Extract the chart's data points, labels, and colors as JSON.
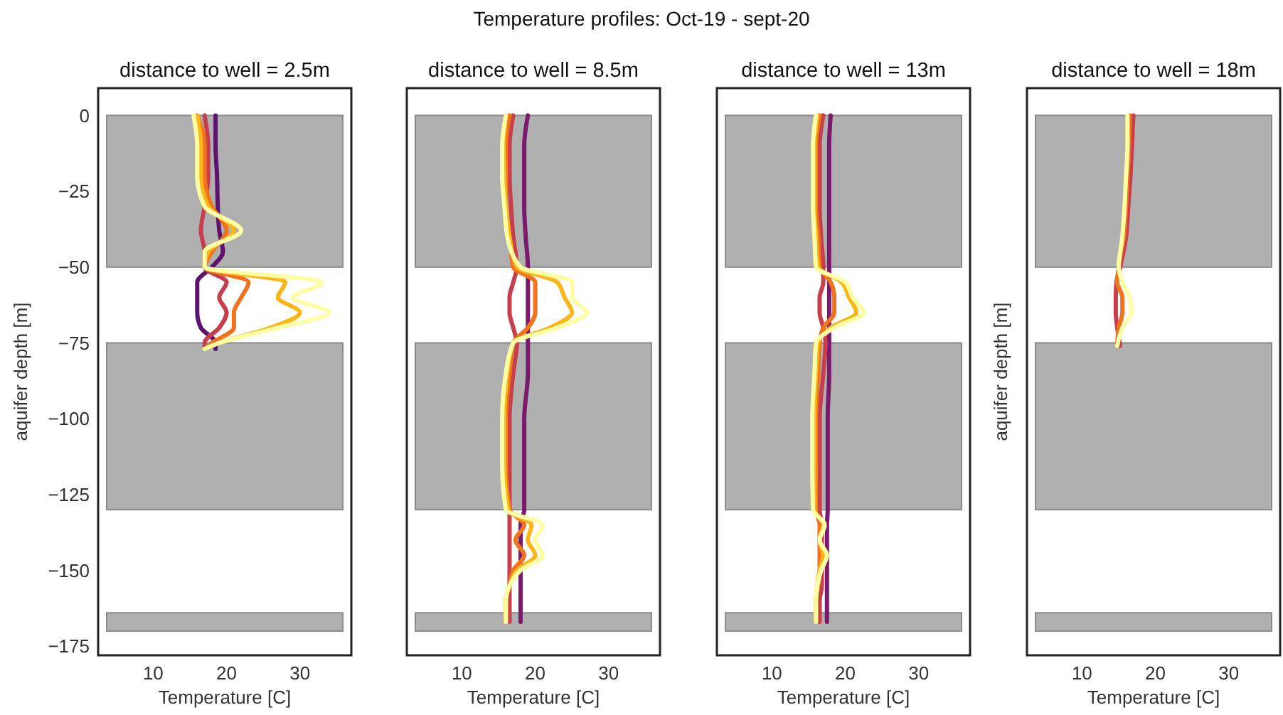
{
  "chart_data": [
    {
      "type": "line",
      "title": "distance to well = 2.5m",
      "xlabel": "Temperature [C]",
      "ylabel": "aquifer depth [m]",
      "annotations": [
        "Temperature profiles: Oct-19 - sept-20"
      ],
      "xlim": [
        2.5,
        37
      ],
      "xticks": [
        10,
        20,
        30
      ],
      "ylim": [
        -178,
        9
      ],
      "yticks": [
        0,
        -25,
        -50,
        -75,
        -100,
        -125,
        -150,
        -175
      ],
      "grid": false,
      "bands": [
        {
          "axis": "y",
          "from": -50,
          "to": 0,
          "color": "#b0b0b0"
        },
        {
          "axis": "y",
          "from": -130,
          "to": -75,
          "color": "#b0b0b0"
        },
        {
          "axis": "y",
          "from": -170,
          "to": -164,
          "color": "#b0b0b0"
        }
      ],
      "series": [
        {
          "color": "#5d126e",
          "x": [
            18.5,
            18.5,
            18.7,
            18.8,
            19,
            19.5,
            18,
            16,
            16,
            16,
            16.5,
            18.5,
            18.5
          ],
          "values": [
            0,
            -10,
            -20,
            -30,
            -38,
            -45,
            -50,
            -55,
            -60,
            -65,
            -70,
            -75,
            -77
          ]
        },
        {
          "color": "#c73e4c",
          "x": [
            17,
            17.5,
            17.5,
            17,
            16.5,
            17,
            17,
            20,
            19,
            20,
            19,
            17,
            17
          ],
          "values": [
            0,
            -10,
            -20,
            -30,
            -38,
            -45,
            -50,
            -55,
            -60,
            -65,
            -70,
            -75,
            -77
          ]
        },
        {
          "color": "#f0731f",
          "x": [
            16,
            17,
            17,
            18,
            20,
            18,
            17,
            23,
            22,
            21,
            21,
            18,
            17
          ],
          "values": [
            0,
            -10,
            -20,
            -30,
            -38,
            -45,
            -50,
            -55,
            -60,
            -65,
            -70,
            -75,
            -77
          ]
        },
        {
          "color": "#fbb61a",
          "x": [
            16,
            16.5,
            16.5,
            17.5,
            21,
            17.5,
            17,
            28,
            27,
            30,
            26,
            19,
            17
          ],
          "values": [
            0,
            -10,
            -20,
            -30,
            -38,
            -45,
            -50,
            -55,
            -60,
            -65,
            -70,
            -75,
            -77
          ]
        },
        {
          "color": "#fcffa4",
          "x": [
            15.5,
            16,
            16,
            17,
            22,
            17,
            17,
            33,
            29,
            34,
            27,
            19,
            17
          ],
          "values": [
            0,
            -10,
            -20,
            -30,
            -38,
            -45,
            -50,
            -55,
            -60,
            -65,
            -70,
            -75,
            -77
          ]
        }
      ]
    },
    {
      "type": "line",
      "title": "distance to well = 8.5m",
      "xlabel": "Temperature [C]",
      "tick_labels": "x",
      "xlim": [
        2.5,
        37
      ],
      "xticks": [
        10,
        20,
        30
      ],
      "ylim": [
        -178,
        9
      ],
      "grid": false,
      "bands": [
        {
          "axis": "y",
          "from": -50,
          "to": 0,
          "color": "#b0b0b0"
        },
        {
          "axis": "y",
          "from": -130,
          "to": -75,
          "color": "#b0b0b0"
        },
        {
          "axis": "y",
          "from": -170,
          "to": -164,
          "color": "#b0b0b0"
        }
      ],
      "series": [
        {
          "color": "#7a1a6d",
          "x": [
            19,
            18.5,
            18.5,
            18.5,
            18.7,
            19,
            19,
            19,
            19,
            19,
            19,
            19,
            18.5,
            18.5,
            18.5,
            18,
            18,
            18,
            18,
            18,
            18,
            18
          ],
          "values": [
            0,
            -10,
            -20,
            -30,
            -40,
            -50,
            -55,
            -60,
            -65,
            -70,
            -75,
            -85,
            -100,
            -115,
            -130,
            -135,
            -140,
            -145,
            -150,
            -155,
            -160,
            -167
          ]
        },
        {
          "color": "#c73e4c",
          "x": [
            17,
            16.5,
            16.5,
            16.7,
            17,
            17.5,
            17,
            16.5,
            16.5,
            17,
            17.5,
            17,
            16.5,
            16.5,
            16.5,
            16.5,
            16.5,
            16.5,
            16.5,
            16.5,
            16.5,
            16.5
          ],
          "values": [
            0,
            -10,
            -20,
            -30,
            -40,
            -50,
            -55,
            -60,
            -65,
            -70,
            -75,
            -85,
            -100,
            -115,
            -130,
            -135,
            -140,
            -145,
            -150,
            -155,
            -160,
            -167
          ]
        },
        {
          "color": "#f0731f",
          "x": [
            16.5,
            16,
            16,
            16,
            16.5,
            17,
            20,
            20,
            20,
            19,
            17,
            16.5,
            16,
            16,
            16.5,
            18.5,
            17.3,
            18.5,
            17,
            16.5,
            16,
            16
          ],
          "values": [
            0,
            -10,
            -20,
            -30,
            -40,
            -50,
            -55,
            -60,
            -65,
            -70,
            -75,
            -85,
            -100,
            -115,
            -130,
            -135,
            -140,
            -145,
            -150,
            -155,
            -160,
            -167
          ]
        },
        {
          "color": "#fbb61a",
          "x": [
            16,
            15.7,
            15.8,
            16,
            16.5,
            17.5,
            23,
            24,
            25,
            22,
            17,
            16.2,
            15.8,
            15.8,
            16.3,
            19.5,
            19,
            20,
            17.5,
            16.5,
            16,
            16
          ],
          "values": [
            0,
            -10,
            -20,
            -30,
            -40,
            -50,
            -55,
            -60,
            -65,
            -70,
            -75,
            -85,
            -100,
            -115,
            -130,
            -135,
            -140,
            -145,
            -150,
            -155,
            -160,
            -167
          ]
        },
        {
          "color": "#fcffa4",
          "x": [
            16,
            15.5,
            15.5,
            15.8,
            16.2,
            18,
            25,
            25,
            27,
            23,
            17,
            16,
            15.5,
            15.5,
            16,
            21,
            20,
            21,
            18,
            16.5,
            16,
            16
          ],
          "values": [
            0,
            -10,
            -20,
            -30,
            -40,
            -50,
            -55,
            -60,
            -65,
            -70,
            -75,
            -85,
            -100,
            -115,
            -130,
            -135,
            -140,
            -145,
            -150,
            -155,
            -160,
            -167
          ]
        }
      ]
    },
    {
      "type": "line",
      "title": "distance to well = 13m",
      "xlabel": "Temperature [C]",
      "tick_labels": "x",
      "xlim": [
        2.5,
        37
      ],
      "xticks": [
        10,
        20,
        30
      ],
      "ylim": [
        -178,
        9
      ],
      "grid": false,
      "bands": [
        {
          "axis": "y",
          "from": -50,
          "to": 0,
          "color": "#b0b0b0"
        },
        {
          "axis": "y",
          "from": -130,
          "to": -75,
          "color": "#b0b0b0"
        },
        {
          "axis": "y",
          "from": -170,
          "to": -164,
          "color": "#b0b0b0"
        }
      ],
      "series": [
        {
          "color": "#7a1a6d",
          "x": [
            18,
            17.8,
            17.8,
            17.8,
            17.8,
            17.8,
            17.8,
            17.8,
            17.8,
            17.8,
            17.8,
            17.8,
            17.6,
            17.6,
            17.6,
            17.5,
            17.5,
            17.5,
            17.5,
            17.5,
            17.5,
            17.5
          ],
          "values": [
            0,
            -10,
            -20,
            -30,
            -40,
            -50,
            -55,
            -60,
            -65,
            -70,
            -75,
            -85,
            -100,
            -115,
            -130,
            -135,
            -140,
            -145,
            -150,
            -155,
            -160,
            -167
          ]
        },
        {
          "color": "#c73e4c",
          "x": [
            17,
            16.5,
            16.5,
            16.5,
            16.7,
            17,
            17,
            16.5,
            16.5,
            17,
            17.3,
            17,
            16.5,
            16.5,
            16.5,
            16.8,
            16.8,
            16.8,
            16.8,
            16.8,
            16.5,
            16.5
          ],
          "values": [
            0,
            -10,
            -20,
            -30,
            -40,
            -50,
            -55,
            -60,
            -65,
            -70,
            -75,
            -85,
            -100,
            -115,
            -130,
            -135,
            -140,
            -145,
            -150,
            -155,
            -160,
            -167
          ]
        },
        {
          "color": "#f0731f",
          "x": [
            16.5,
            16,
            16,
            16,
            16.3,
            16.5,
            18,
            18.5,
            18.5,
            17,
            16.5,
            16.3,
            16,
            16,
            16,
            16.5,
            16.5,
            16.5,
            16.5,
            16.3,
            16,
            16
          ],
          "values": [
            0,
            -10,
            -20,
            -30,
            -40,
            -50,
            -55,
            -60,
            -65,
            -70,
            -75,
            -85,
            -100,
            -115,
            -130,
            -135,
            -140,
            -145,
            -150,
            -155,
            -160,
            -167
          ]
        },
        {
          "color": "#fbb61a",
          "x": [
            16.2,
            15.8,
            15.8,
            15.8,
            16,
            16.3,
            19.5,
            20.5,
            21.5,
            18,
            16.3,
            16,
            15.8,
            15.8,
            15.8,
            17,
            16.5,
            17,
            16.5,
            16.2,
            16,
            16
          ],
          "values": [
            0,
            -10,
            -20,
            -30,
            -40,
            -50,
            -55,
            -60,
            -65,
            -70,
            -75,
            -85,
            -100,
            -115,
            -130,
            -135,
            -140,
            -145,
            -150,
            -155,
            -160,
            -167
          ]
        },
        {
          "color": "#fcffa4",
          "x": [
            16,
            15.6,
            15.6,
            15.6,
            15.8,
            16,
            20,
            21,
            22.5,
            18.5,
            16,
            15.8,
            15.5,
            15.5,
            15.6,
            17.2,
            16.5,
            17.5,
            16.7,
            16.2,
            16,
            16
          ],
          "values": [
            0,
            -10,
            -20,
            -30,
            -40,
            -50,
            -55,
            -60,
            -65,
            -70,
            -75,
            -85,
            -100,
            -115,
            -130,
            -135,
            -140,
            -145,
            -150,
            -155,
            -160,
            -167
          ]
        }
      ]
    },
    {
      "type": "line",
      "title": "distance to well = 18m",
      "xlabel": "Temperature [C]",
      "ylabel": "aquifer depth [m]",
      "tick_labels": "x",
      "xlim": [
        2.5,
        37
      ],
      "xticks": [
        10,
        20,
        30
      ],
      "ylim": [
        -178,
        9
      ],
      "grid": false,
      "bands": [
        {
          "axis": "y",
          "from": -50,
          "to": 0,
          "color": "#b0b0b0"
        },
        {
          "axis": "y",
          "from": -130,
          "to": -75,
          "color": "#b0b0b0"
        },
        {
          "axis": "y",
          "from": -170,
          "to": -164,
          "color": "#b0b0b0"
        }
      ],
      "series": [
        {
          "color": "#c73e4c",
          "x": [
            17,
            16.8,
            16.6,
            16.3,
            16,
            15.2,
            14.7,
            14.6,
            14.6,
            14.8,
            15.2
          ],
          "values": [
            0,
            -10,
            -20,
            -30,
            -40,
            -50,
            -55,
            -60,
            -65,
            -70,
            -76
          ]
        },
        {
          "color": "#f0731f",
          "x": [
            16.5,
            16.4,
            16.2,
            16,
            15.7,
            15,
            14.8,
            15.5,
            15.5,
            15,
            14.8
          ],
          "values": [
            0,
            -10,
            -20,
            -30,
            -40,
            -50,
            -55,
            -60,
            -65,
            -70,
            -76
          ]
        },
        {
          "color": "#fcffa4",
          "x": [
            16.2,
            16.2,
            16,
            15.8,
            15.5,
            15,
            15.5,
            16.5,
            16.7,
            15.5,
            14.8
          ],
          "values": [
            0,
            -10,
            -20,
            -30,
            -40,
            -50,
            -55,
            -60,
            -65,
            -70,
            -76
          ]
        }
      ]
    }
  ]
}
